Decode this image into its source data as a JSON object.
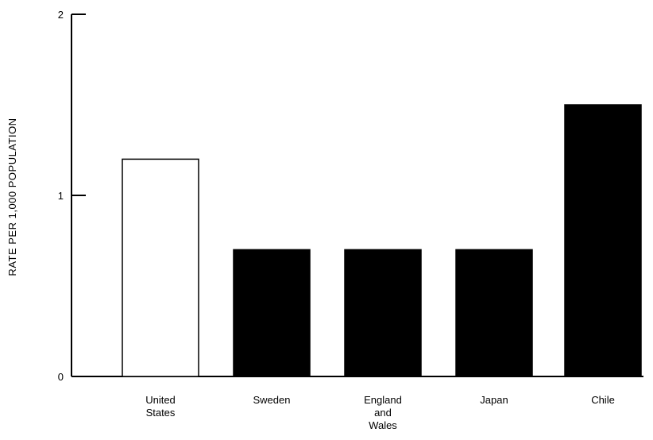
{
  "chart_data": {
    "type": "bar",
    "title": "",
    "xlabel": "",
    "ylabel": "RATE PER 1,000 POPULATION",
    "ylim": [
      0,
      2
    ],
    "yticks": [
      "0",
      "1",
      "2"
    ],
    "grid": false,
    "categories": [
      [
        "United",
        "States"
      ],
      [
        "Sweden"
      ],
      [
        "England",
        "and",
        "Wales"
      ],
      [
        "Japan"
      ],
      [
        "Chile"
      ]
    ],
    "values": [
      1.2,
      0.7,
      0.7,
      0.7,
      1.5
    ],
    "fills": [
      "#ffffff",
      "#000000",
      "#000000",
      "#000000",
      "#000000"
    ]
  }
}
